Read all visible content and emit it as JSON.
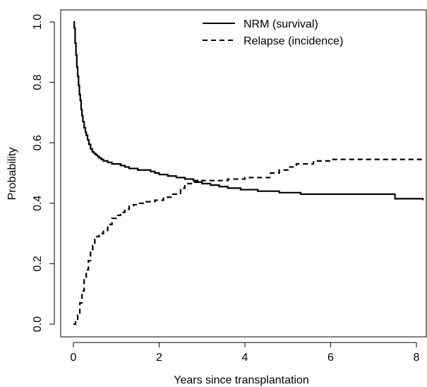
{
  "chart_data": {
    "type": "line",
    "title": "",
    "xlabel": "Years since transplantation",
    "ylabel": "Probability",
    "xlim": [
      0,
      8.15
    ],
    "ylim": [
      0,
      1.03
    ],
    "x_ticks": [
      0,
      2,
      4,
      6,
      8
    ],
    "y_ticks": [
      0.0,
      0.2,
      0.4,
      0.6,
      0.8,
      1.0
    ],
    "x_tick_labels": [
      "0",
      "2",
      "4",
      "6",
      "8"
    ],
    "y_tick_labels": [
      "0.0",
      "0.2",
      "0.4",
      "0.6",
      "0.8",
      "1.0"
    ],
    "grid": false,
    "legend_position": "top-right",
    "series": [
      {
        "name": "NRM (survival)",
        "style": "solid",
        "step": true,
        "color": "#000000",
        "x": [
          0,
          0.02,
          0.04,
          0.06,
          0.08,
          0.1,
          0.12,
          0.14,
          0.16,
          0.18,
          0.2,
          0.22,
          0.25,
          0.28,
          0.3,
          0.33,
          0.36,
          0.4,
          0.44,
          0.48,
          0.52,
          0.56,
          0.6,
          0.65,
          0.7,
          0.8,
          0.9,
          1.0,
          1.1,
          1.2,
          1.3,
          1.4,
          1.5,
          1.6,
          1.8,
          1.9,
          2.0,
          2.2,
          2.4,
          2.6,
          2.8,
          2.9,
          3.0,
          3.2,
          3.4,
          3.6,
          3.9,
          4.3,
          4.8,
          5.3,
          7.1,
          7.5,
          8.15
        ],
        "y": [
          1.0,
          0.98,
          0.93,
          0.89,
          0.85,
          0.82,
          0.79,
          0.76,
          0.74,
          0.71,
          0.69,
          0.67,
          0.65,
          0.635,
          0.625,
          0.61,
          0.595,
          0.58,
          0.57,
          0.565,
          0.56,
          0.555,
          0.55,
          0.545,
          0.54,
          0.535,
          0.53,
          0.53,
          0.525,
          0.52,
          0.515,
          0.515,
          0.51,
          0.51,
          0.505,
          0.5,
          0.495,
          0.49,
          0.485,
          0.48,
          0.475,
          0.47,
          0.465,
          0.46,
          0.455,
          0.45,
          0.445,
          0.44,
          0.435,
          0.43,
          0.43,
          0.415,
          0.41
        ]
      },
      {
        "name": "Relapse (incidence)",
        "style": "dashed",
        "step": true,
        "color": "#000000",
        "x": [
          0,
          0.05,
          0.1,
          0.15,
          0.2,
          0.25,
          0.3,
          0.35,
          0.4,
          0.45,
          0.5,
          0.55,
          0.6,
          0.7,
          0.8,
          0.9,
          1.0,
          1.1,
          1.2,
          1.3,
          1.4,
          1.5,
          1.7,
          1.9,
          2.1,
          2.3,
          2.5,
          2.6,
          2.8,
          3.0,
          3.6,
          4.0,
          4.6,
          4.8,
          5.0,
          5.2,
          5.6,
          6.0,
          8.15
        ],
        "y": [
          0.0,
          0.01,
          0.03,
          0.07,
          0.11,
          0.15,
          0.18,
          0.21,
          0.24,
          0.26,
          0.28,
          0.29,
          0.3,
          0.31,
          0.33,
          0.35,
          0.36,
          0.37,
          0.38,
          0.39,
          0.395,
          0.4,
          0.405,
          0.41,
          0.42,
          0.43,
          0.45,
          0.465,
          0.47,
          0.475,
          0.48,
          0.485,
          0.5,
          0.51,
          0.52,
          0.53,
          0.54,
          0.545,
          0.545
        ]
      }
    ]
  }
}
